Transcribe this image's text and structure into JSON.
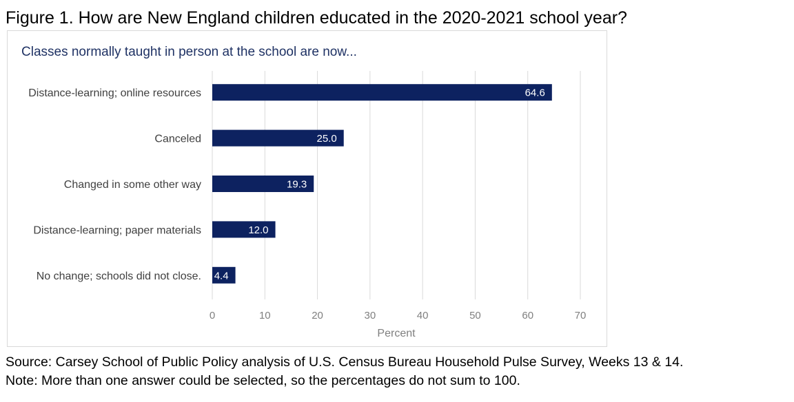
{
  "figure_title": "Figure 1. How are New England children educated in the 2020-2021 school year?",
  "source": "Source: Carsey School of Public Policy analysis of U.S. Census Bureau Household Pulse Survey, Weeks 13 & 14.",
  "note": "Note: More than one answer could be selected, so the percentages do not sum to 100.",
  "colors": {
    "bar": "#0d2260",
    "subtitle": "#1f3264",
    "gridline": "#d9d9d9",
    "axis_text": "#7f7f7f",
    "bar_label": "#ffffff",
    "category_text": "#404040"
  },
  "chart_data": {
    "type": "bar",
    "orientation": "horizontal",
    "title": "Classes normally taught in person at the school are now...",
    "xlabel": "Percent",
    "ylabel": "",
    "categories": [
      "Distance-learning; online resources",
      "Canceled",
      "Changed in some other way",
      "Distance-learning; paper materials",
      "No change; schools did not close."
    ],
    "values": [
      64.6,
      25.0,
      19.3,
      12.0,
      4.4
    ],
    "value_labels": [
      "64.6",
      "25.0",
      "19.3",
      "12.0",
      "4.4"
    ],
    "xlim": [
      0,
      70
    ],
    "xticks": [
      0,
      10,
      20,
      30,
      40,
      50,
      60,
      70
    ],
    "grid": "vertical",
    "legend": "none"
  }
}
